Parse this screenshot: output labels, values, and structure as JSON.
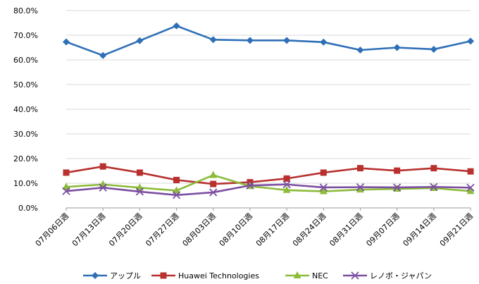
{
  "chart_data": {
    "type": "line",
    "categories": [
      "07月06日週",
      "07月13日週",
      "07月20日週",
      "07月27日週",
      "08月03日週",
      "08月10日週",
      "08月17日週",
      "08月24日週",
      "08月31日週",
      "09月07日週",
      "09月14日週",
      "09月21日週"
    ],
    "ylim": [
      0,
      80
    ],
    "y_ticks": [
      "0.0%",
      "10.0%",
      "20.0%",
      "30.0%",
      "40.0%",
      "50.0%",
      "60.0%",
      "70.0%",
      "80.0%"
    ],
    "grid": true,
    "legend_position": "bottom",
    "series": [
      {
        "name": "アップル",
        "color": "#2e6fb7",
        "marker": "diamond",
        "values": [
          67.3,
          61.8,
          67.8,
          73.8,
          68.2,
          67.9,
          67.9,
          67.2,
          64.0,
          65.0,
          64.3,
          67.6
        ]
      },
      {
        "name": "Huawei Technologies",
        "color": "#b8312f",
        "marker": "square",
        "values": [
          14.3,
          16.8,
          14.3,
          11.3,
          9.7,
          10.4,
          11.9,
          14.3,
          16.1,
          15.1,
          16.1,
          14.8
        ]
      },
      {
        "name": "NEC",
        "color": "#8dbb3a",
        "marker": "triangle",
        "values": [
          8.5,
          9.5,
          8.2,
          7.0,
          13.3,
          8.8,
          7.2,
          6.7,
          7.4,
          7.7,
          8.0,
          6.8
        ]
      },
      {
        "name": "レノボ・ジャパン",
        "color": "#7b4fa1",
        "marker": "x",
        "values": [
          6.8,
          8.2,
          6.6,
          5.2,
          6.3,
          9.1,
          9.5,
          8.3,
          8.4,
          8.3,
          8.5,
          8.2
        ]
      }
    ]
  }
}
